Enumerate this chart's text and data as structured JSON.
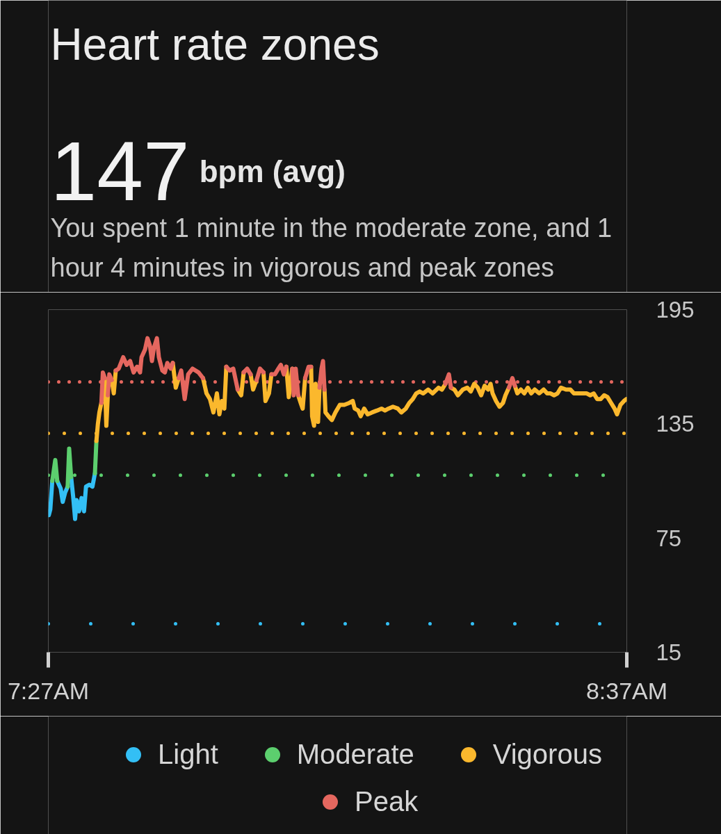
{
  "chart_data": {
    "type": "line",
    "title": "Heart rate zones",
    "subtitle": "You spent 1 minute in the moderate zone, and 1 hour 4 minutes in vigorous and peak zones",
    "annotations": [
      "147",
      "bpm (avg)"
    ],
    "series": [
      {
        "name": "Light",
        "color": "#33bff5",
        "x": [
          7.451,
          7.454,
          7.458,
          7.464,
          7.468,
          7.475,
          7.479,
          7.484,
          7.489,
          7.492,
          7.496,
          7.5,
          7.504,
          7.507,
          7.512,
          7.517,
          7.522,
          7.526,
          7.533,
          7.539,
          7.544
        ],
        "values": [
          87,
          90,
          105,
          null,
          105,
          101,
          94,
          99,
          102,
          null,
          107,
          97,
          85,
          95,
          89,
          96,
          89,
          102,
          103,
          102,
          109
        ]
      },
      {
        "name": "Moderate",
        "color": "#5ccf6e",
        "x": [
          7.458,
          7.464,
          7.468,
          7.475,
          7.489,
          7.492,
          7.496,
          7.5,
          7.544,
          7.547
        ],
        "values": [
          105,
          116,
          105,
          null,
          102,
          122,
          107,
          null,
          109,
          126
        ]
      },
      {
        "name": "Vigorous",
        "color": "#fbb82d",
        "x": [
          7.547,
          7.55,
          7.553,
          7.557,
          7.56,
          7.564,
          7.567,
          7.57,
          7.573,
          7.578,
          7.582,
          7.586,
          7.592,
          7.701,
          7.707,
          7.713,
          7.718,
          7.762,
          7.769,
          7.776,
          7.783,
          7.79,
          7.795,
          7.8,
          7.805,
          7.809,
          7.816,
          7.832,
          7.839,
          7.844,
          7.851,
          7.858,
          7.863,
          7.87,
          7.877,
          7.884,
          7.888,
          7.895,
          7.9,
          7.907,
          7.93,
          7.935,
          7.942,
          7.945,
          7.954,
          7.959,
          7.963,
          7.968,
          7.975,
          7.98,
          7.982,
          7.986,
          7.989,
          7.994,
          7.997,
          8.001,
          8.007,
          8.009,
          8.015,
          8.022,
          8.029,
          8.038,
          8.047,
          8.057,
          8.064,
          8.068,
          8.075,
          8.08,
          8.087,
          8.094,
          8.103,
          8.113,
          8.122,
          8.129,
          8.136,
          8.145,
          8.155,
          8.162,
          8.171,
          8.178,
          8.185,
          8.192,
          8.199,
          8.206,
          8.216,
          8.225,
          8.237,
          8.244,
          8.251,
          8.258,
          8.262,
          8.269,
          8.276,
          8.286,
          8.295,
          8.302,
          8.309,
          8.316,
          8.323,
          8.33,
          8.337,
          8.342,
          8.346,
          8.353,
          8.36,
          8.367,
          8.372,
          8.379,
          8.386,
          8.391,
          8.396,
          8.403,
          8.41,
          8.417,
          8.424,
          8.431,
          8.44,
          8.449,
          8.456,
          8.463,
          8.47,
          8.477,
          8.484,
          8.494,
          8.503,
          8.51,
          8.519,
          8.526,
          8.536,
          8.543,
          8.55,
          8.557,
          8.564,
          8.571,
          8.578,
          8.585,
          8.592,
          8.597,
          8.604,
          8.611,
          8.616
        ],
        "values": [
          126,
          135,
          141,
          146,
          null,
          159,
          134,
          150,
          null,
          158,
          151,
          163,
          null,
          167,
          154,
          159,
          null,
          159,
          151,
          148,
          141,
          151,
          140,
          147,
          143,
          165,
          null,
          153,
          150,
          162,
          null,
          161,
          153,
          158,
          null,
          162,
          147,
          151,
          161,
          null,
          165,
          149,
          164,
          null,
          150,
          146,
          143,
          159,
          null,
          165,
          139,
          134,
          156,
          136,
          154,
          null,
          153,
          141,
          139,
          137,
          141,
          145,
          145,
          146,
          147,
          143,
          142,
          139,
          143,
          140,
          141,
          142,
          143,
          142,
          143,
          144,
          143,
          141,
          143,
          146,
          148,
          151,
          152,
          151,
          153,
          151,
          154,
          153,
          156,
          null,
          154,
          153,
          150,
          153,
          154,
          152,
          156,
          154,
          150,
          155,
          153,
          156,
          151,
          147,
          144,
          146,
          150,
          154,
          null,
          155,
          151,
          153,
          151,
          154,
          151,
          153,
          151,
          153,
          151,
          151,
          150,
          151,
          154,
          153,
          153,
          151,
          151,
          151,
          151,
          150,
          151,
          148,
          148,
          150,
          149,
          146,
          143,
          140,
          145,
          147,
          148
        ]
      },
      {
        "name": "Peak",
        "color": "#e5675f",
        "x": [
          7.557,
          7.56,
          7.564,
          7.567,
          7.57,
          7.573,
          7.578,
          7.582,
          7.586,
          7.592,
          7.601,
          7.608,
          7.615,
          7.622,
          7.629,
          7.635,
          7.638,
          7.645,
          7.65,
          7.655,
          7.659,
          7.663,
          7.669,
          7.673,
          7.68,
          7.685,
          7.69,
          7.697,
          7.701,
          7.707,
          7.713,
          7.718,
          7.725,
          7.732,
          7.741,
          7.753,
          7.762,
          7.769,
          7.809,
          7.816,
          7.823,
          7.832,
          7.839,
          7.844,
          7.851,
          7.858,
          7.863,
          7.87,
          7.877,
          7.884,
          7.888,
          7.9,
          7.907,
          7.914,
          7.919,
          7.925,
          7.93,
          7.935,
          7.942,
          7.945,
          7.949,
          7.954,
          7.959,
          7.968,
          7.975,
          7.98,
          7.982,
          7.997,
          8.001,
          8.004,
          8.007,
          8.009,
          8.251,
          8.258,
          8.262,
          8.269,
          8.379,
          8.386,
          8.391
        ],
        "values": [
          146,
          162,
          159,
          null,
          150,
          161,
          158,
          null,
          163,
          164,
          170,
          166,
          168,
          162,
          165,
          162,
          170,
          174,
          180,
          176,
          168,
          175,
          180,
          170,
          163,
          162,
          167,
          164,
          167,
          null,
          159,
          163,
          148,
          161,
          164,
          162,
          159,
          null,
          165,
          163,
          164,
          153,
          null,
          162,
          164,
          161,
          null,
          158,
          164,
          162,
          null,
          161,
          161,
          164,
          166,
          161,
          165,
          null,
          164,
          150,
          164,
          150,
          null,
          159,
          165,
          165,
          null,
          154,
          164,
          168,
          153,
          null,
          156,
          161,
          154,
          null,
          154,
          159,
          155
        ]
      }
    ],
    "xlim": [
      7.45,
      8.6167
    ],
    "xticks": [
      {
        "value": 7.45,
        "label": "7:27AM"
      },
      {
        "value": 8.6167,
        "label": "8:37AM"
      }
    ],
    "ylim": [
      15,
      195
    ],
    "yticks": [
      15,
      75,
      135,
      195
    ],
    "ref_lines": [
      {
        "axis": "y",
        "value": 30,
        "color": "#33bff5",
        "line_style": "dotted"
      },
      {
        "axis": "y",
        "value": 108,
        "color": "#5ccf6e",
        "line_style": "dotted"
      },
      {
        "axis": "y",
        "value": 130,
        "color": "#fbb82d",
        "line_style": "dotted"
      },
      {
        "axis": "y",
        "value": 157,
        "color": "#e5675f",
        "line_style": "dotted"
      }
    ],
    "legend": "bottom"
  }
}
